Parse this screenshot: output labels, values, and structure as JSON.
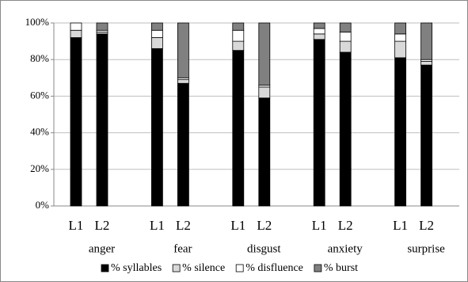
{
  "chart_data": {
    "type": "stacked_bar",
    "categories": [
      "L1",
      "L2",
      "L1",
      "L2",
      "L1",
      "L2",
      "L1",
      "L2",
      "L1",
      "L2"
    ],
    "groups": [
      "anger",
      "fear",
      "disgust",
      "anxiety",
      "surprise"
    ],
    "series": [
      {
        "name": "% syllables",
        "color": "#000000",
        "values": [
          92,
          94,
          86,
          67,
          85,
          59,
          91,
          84,
          81,
          77
        ]
      },
      {
        "name": "% silence",
        "color": "#d9d9d9",
        "values": [
          4,
          1,
          6,
          2,
          5,
          6,
          3,
          6,
          9,
          2
        ]
      },
      {
        "name": "% disfluence",
        "color": "#ffffff",
        "values": [
          4,
          1,
          4,
          1,
          6,
          1,
          3,
          5,
          4,
          1
        ]
      },
      {
        "name": "% burst",
        "color": "#808080",
        "values": [
          0,
          4,
          4,
          30,
          4,
          34,
          3,
          5,
          6,
          20
        ]
      }
    ],
    "ylim": [
      0,
      100
    ],
    "yticks": [
      {
        "value": 0,
        "label": "0%"
      },
      {
        "value": 20,
        "label": "20%"
      },
      {
        "value": 40,
        "label": "40%"
      },
      {
        "value": 60,
        "label": "60%"
      },
      {
        "value": 80,
        "label": "80%"
      },
      {
        "value": 100,
        "label": "100%"
      }
    ],
    "grid": true,
    "legend": "bottom"
  }
}
